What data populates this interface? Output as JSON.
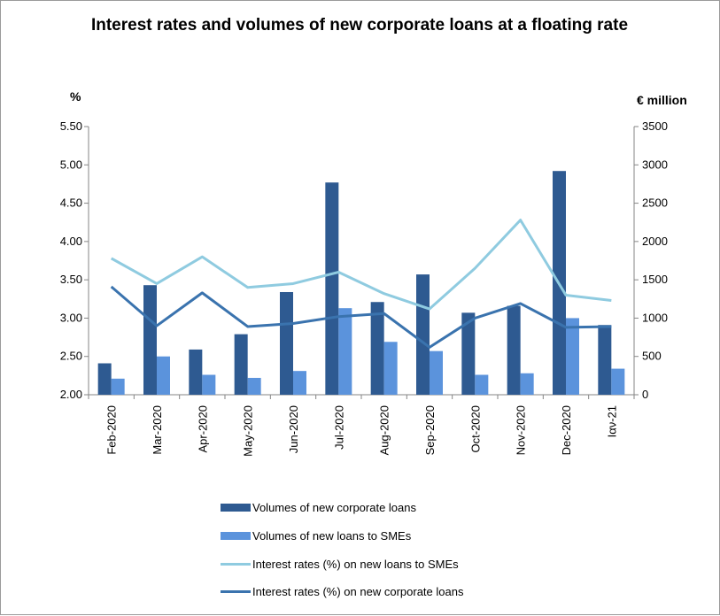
{
  "chart_data": {
    "type": "bar+line",
    "title": "Interest rates and volumes of new corporate loans at a floating rate",
    "y_left_unit": "%",
    "y_right_unit": "€ million",
    "y_left_range": [
      2.0,
      5.5
    ],
    "y_right_range": [
      0,
      3500
    ],
    "y_left_ticks": [
      "2.00",
      "2.50",
      "3.00",
      "3.50",
      "4.00",
      "4.50",
      "5.00",
      "5.50"
    ],
    "y_right_ticks": [
      "0",
      "500",
      "1000",
      "1500",
      "2000",
      "2500",
      "3000",
      "3500"
    ],
    "categories": [
      "Feb-2020",
      "Mar-2020",
      "Apr-2020",
      "May-2020",
      "Jun-2020",
      "Jul-2020",
      "Aug-2020",
      "Sep-2020",
      "Oct-2020",
      "Nov-2020",
      "Dec-2020",
      "Ιαν-21"
    ],
    "grid": false,
    "legend_position": "bottom",
    "series": [
      {
        "name": "Volumes of new corporate loans",
        "kind": "bar",
        "axis": "right",
        "color": "#2e5a91",
        "values": [
          410,
          1430,
          590,
          790,
          1340,
          2770,
          1210,
          1570,
          1070,
          1160,
          2920,
          910
        ]
      },
      {
        "name": "Volumes of new loans to SMEs",
        "kind": "bar",
        "axis": "right",
        "color": "#5b93dc",
        "values": [
          210,
          500,
          260,
          220,
          310,
          1130,
          690,
          570,
          260,
          280,
          1000,
          340
        ]
      },
      {
        "name": "Interest rates (%) on new loans to SMEs",
        "kind": "line",
        "axis": "left",
        "color": "#8fcbe0",
        "values": [
          3.78,
          3.45,
          3.8,
          3.4,
          3.45,
          3.6,
          3.32,
          3.12,
          3.65,
          4.28,
          3.3,
          3.23
        ]
      },
      {
        "name": "Interest rates (%) on new corporate loans",
        "kind": "line",
        "axis": "left",
        "color": "#3a73ae",
        "values": [
          3.41,
          2.9,
          3.33,
          2.89,
          2.93,
          3.02,
          3.06,
          2.62,
          3.0,
          3.19,
          2.88,
          2.89
        ]
      }
    ]
  }
}
